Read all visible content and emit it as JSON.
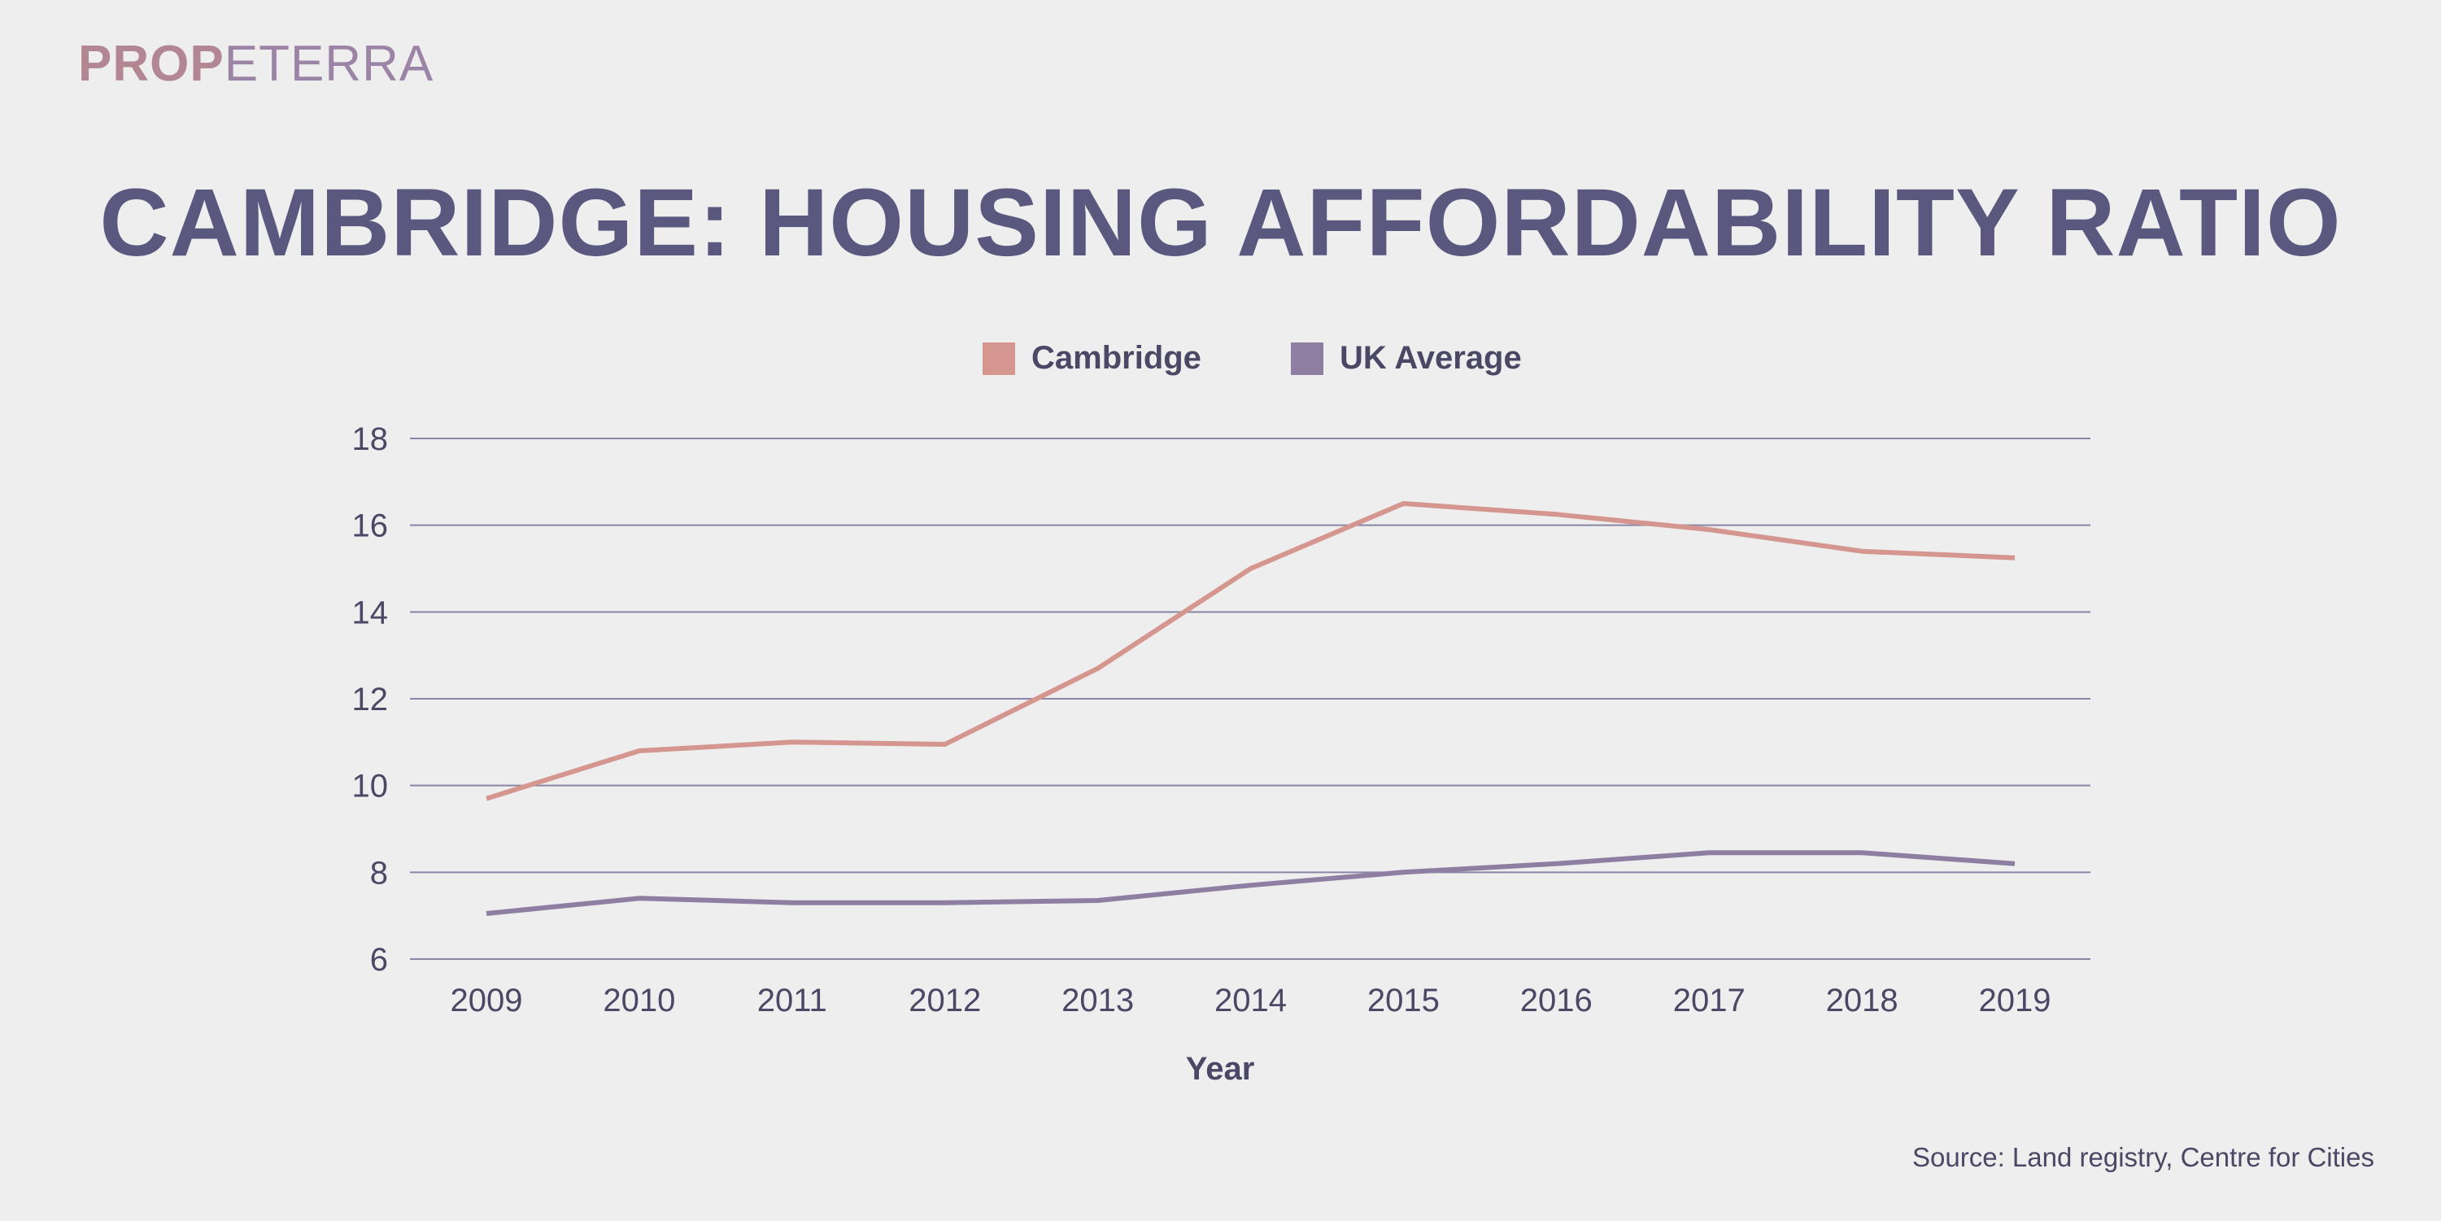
{
  "logo": {
    "part_bold": "PROP",
    "part_light": "ETERRA"
  },
  "title": "CAMBRIDGE: HOUSING AFFORDABILITY RATIO",
  "source": "Source: Land registry, Centre for Cities",
  "colors": {
    "cambridge": "#d4968e",
    "uk_average": "#8e7ea2",
    "text": "#4a4865",
    "title": "#5b5880",
    "grid": "#8886a6"
  },
  "chart_data": {
    "type": "line",
    "title": "CAMBRIDGE: HOUSING AFFORDABILITY RATIO",
    "xlabel": "Year",
    "ylabel": "",
    "ylim": [
      6,
      18
    ],
    "yticks": [
      6,
      8,
      10,
      12,
      14,
      16,
      18
    ],
    "grid": true,
    "legend_position": "top-center",
    "categories": [
      "2009",
      "2010",
      "2011",
      "2012",
      "2013",
      "2014",
      "2015",
      "2016",
      "2017",
      "2018",
      "2019"
    ],
    "series": [
      {
        "name": "Cambridge",
        "color": "#d4968e",
        "values": [
          9.7,
          10.8,
          11.0,
          10.95,
          12.7,
          15.0,
          16.5,
          16.25,
          15.9,
          15.4,
          15.25
        ]
      },
      {
        "name": "UK Average",
        "color": "#8e7ea2",
        "values": [
          7.05,
          7.4,
          7.3,
          7.3,
          7.35,
          7.7,
          8.0,
          8.2,
          8.45,
          8.45,
          8.2
        ]
      }
    ]
  }
}
